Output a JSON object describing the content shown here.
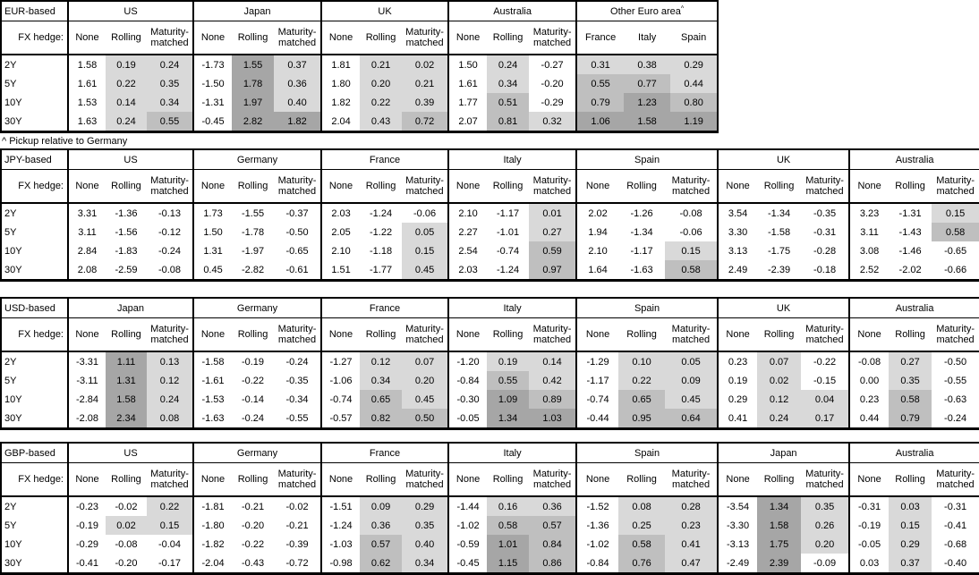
{
  "note": "^ Pickup relative to Germany",
  "header": {
    "fx_hedge_label": "FX hedge:",
    "subcolumns": [
      "None",
      "Rolling",
      "Maturity-matched"
    ]
  },
  "maturities": [
    "2Y",
    "5Y",
    "10Y",
    "30Y"
  ],
  "shading": {
    "colors": {
      "none": "#FFFFFF",
      "light": "#D9D9D9",
      "medium": "#BFBFBF",
      "dark": "#A6A6A6"
    },
    "thresholds": {
      "light_min_exclusive": 0,
      "medium_min": 0.5,
      "dark_min_exclusive": 1.0
    },
    "note": "None columns unshaded; Rolling / Maturity-matched / pickup columns shaded by value bucket"
  },
  "tables": [
    {
      "base": "EUR-based",
      "groups": [
        {
          "name": "US",
          "values": [
            [
              "1.58",
              "0.19",
              "0.24"
            ],
            [
              "1.61",
              "0.22",
              "0.35"
            ],
            [
              "1.53",
              "0.14",
              "0.34"
            ],
            [
              "1.63",
              "0.24",
              "0.55"
            ]
          ]
        },
        {
          "name": "Japan",
          "values": [
            [
              "-1.73",
              "1.55",
              "0.37"
            ],
            [
              "-1.50",
              "1.78",
              "0.36"
            ],
            [
              "-1.31",
              "1.97",
              "0.40"
            ],
            [
              "-0.45",
              "2.82",
              "1.82"
            ]
          ]
        },
        {
          "name": "UK",
          "values": [
            [
              "1.81",
              "0.21",
              "0.02"
            ],
            [
              "1.80",
              "0.20",
              "0.21"
            ],
            [
              "1.82",
              "0.22",
              "0.39"
            ],
            [
              "2.04",
              "0.43",
              "0.72"
            ]
          ]
        },
        {
          "name": "Australia",
          "values": [
            [
              "1.50",
              "0.24",
              "-0.27"
            ],
            [
              "1.61",
              "0.34",
              "-0.20"
            ],
            [
              "1.77",
              "0.51",
              "-0.29"
            ],
            [
              "2.07",
              "0.81",
              "0.32"
            ]
          ]
        },
        {
          "name": "Other Euro area",
          "superscript": "^",
          "shade_all": true,
          "columns": [
            "France",
            "Italy",
            "Spain"
          ],
          "values": [
            [
              "0.31",
              "0.38",
              "0.29"
            ],
            [
              "0.55",
              "0.77",
              "0.44"
            ],
            [
              "0.79",
              "1.23",
              "0.80"
            ],
            [
              "1.06",
              "1.58",
              "1.19"
            ]
          ]
        }
      ]
    },
    {
      "base": "JPY-based",
      "groups": [
        {
          "name": "US",
          "values": [
            [
              "3.31",
              "-1.36",
              "-0.13"
            ],
            [
              "3.11",
              "-1.56",
              "-0.12"
            ],
            [
              "2.84",
              "-1.83",
              "-0.24"
            ],
            [
              "2.08",
              "-2.59",
              "-0.08"
            ]
          ]
        },
        {
          "name": "Germany",
          "values": [
            [
              "1.73",
              "-1.55",
              "-0.37"
            ],
            [
              "1.50",
              "-1.78",
              "-0.50"
            ],
            [
              "1.31",
              "-1.97",
              "-0.65"
            ],
            [
              "0.45",
              "-2.82",
              "-0.61"
            ]
          ]
        },
        {
          "name": "France",
          "values": [
            [
              "2.03",
              "-1.24",
              "-0.06"
            ],
            [
              "2.05",
              "-1.22",
              "0.05"
            ],
            [
              "2.10",
              "-1.18",
              "0.15"
            ],
            [
              "1.51",
              "-1.77",
              "0.45"
            ]
          ]
        },
        {
          "name": "Italy",
          "values": [
            [
              "2.10",
              "-1.17",
              "0.01"
            ],
            [
              "2.27",
              "-1.01",
              "0.27"
            ],
            [
              "2.54",
              "-0.74",
              "0.59"
            ],
            [
              "2.03",
              "-1.24",
              "0.97"
            ]
          ]
        },
        {
          "name": "Spain",
          "values": [
            [
              "2.02",
              "-1.26",
              "-0.08"
            ],
            [
              "1.94",
              "-1.34",
              "-0.06"
            ],
            [
              "2.10",
              "-1.17",
              "0.15"
            ],
            [
              "1.64",
              "-1.63",
              "0.58"
            ]
          ]
        },
        {
          "name": "UK",
          "values": [
            [
              "3.54",
              "-1.34",
              "-0.35"
            ],
            [
              "3.30",
              "-1.58",
              "-0.31"
            ],
            [
              "3.13",
              "-1.75",
              "-0.28"
            ],
            [
              "2.49",
              "-2.39",
              "-0.18"
            ]
          ]
        },
        {
          "name": "Australia",
          "values": [
            [
              "3.23",
              "-1.31",
              "0.15"
            ],
            [
              "3.11",
              "-1.43",
              "0.58"
            ],
            [
              "3.08",
              "-1.46",
              "-0.65"
            ],
            [
              "2.52",
              "-2.02",
              "-0.66"
            ]
          ]
        }
      ]
    },
    {
      "base": "USD-based",
      "groups": [
        {
          "name": "Japan",
          "values": [
            [
              "-3.31",
              "1.11",
              "0.13"
            ],
            [
              "-3.11",
              "1.31",
              "0.12"
            ],
            [
              "-2.84",
              "1.58",
              "0.24"
            ],
            [
              "-2.08",
              "2.34",
              "0.08"
            ]
          ]
        },
        {
          "name": "Germany",
          "values": [
            [
              "-1.58",
              "-0.19",
              "-0.24"
            ],
            [
              "-1.61",
              "-0.22",
              "-0.35"
            ],
            [
              "-1.53",
              "-0.14",
              "-0.34"
            ],
            [
              "-1.63",
              "-0.24",
              "-0.55"
            ]
          ]
        },
        {
          "name": "France",
          "values": [
            [
              "-1.27",
              "0.12",
              "0.07"
            ],
            [
              "-1.06",
              "0.34",
              "0.20"
            ],
            [
              "-0.74",
              "0.65",
              "0.45"
            ],
            [
              "-0.57",
              "0.82",
              "0.50"
            ]
          ]
        },
        {
          "name": "Italy",
          "values": [
            [
              "-1.20",
              "0.19",
              "0.14"
            ],
            [
              "-0.84",
              "0.55",
              "0.42"
            ],
            [
              "-0.30",
              "1.09",
              "0.89"
            ],
            [
              "-0.05",
              "1.34",
              "1.03"
            ]
          ]
        },
        {
          "name": "Spain",
          "values": [
            [
              "-1.29",
              "0.10",
              "0.05"
            ],
            [
              "-1.17",
              "0.22",
              "0.09"
            ],
            [
              "-0.74",
              "0.65",
              "0.45"
            ],
            [
              "-0.44",
              "0.95",
              "0.64"
            ]
          ]
        },
        {
          "name": "UK",
          "values": [
            [
              "0.23",
              "0.07",
              "-0.22"
            ],
            [
              "0.19",
              "0.02",
              "-0.15"
            ],
            [
              "0.29",
              "0.12",
              "0.04"
            ],
            [
              "0.41",
              "0.24",
              "0.17"
            ]
          ]
        },
        {
          "name": "Australia",
          "values": [
            [
              "-0.08",
              "0.27",
              "-0.50"
            ],
            [
              "0.00",
              "0.35",
              "-0.55"
            ],
            [
              "0.23",
              "0.58",
              "-0.63"
            ],
            [
              "0.44",
              "0.79",
              "-0.24"
            ]
          ]
        }
      ]
    },
    {
      "base": "GBP-based",
      "groups": [
        {
          "name": "US",
          "values": [
            [
              "-0.23",
              "-0.02",
              "0.22"
            ],
            [
              "-0.19",
              "0.02",
              "0.15"
            ],
            [
              "-0.29",
              "-0.08",
              "-0.04"
            ],
            [
              "-0.41",
              "-0.20",
              "-0.17"
            ]
          ]
        },
        {
          "name": "Germany",
          "values": [
            [
              "-1.81",
              "-0.21",
              "-0.02"
            ],
            [
              "-1.80",
              "-0.20",
              "-0.21"
            ],
            [
              "-1.82",
              "-0.22",
              "-0.39"
            ],
            [
              "-2.04",
              "-0.43",
              "-0.72"
            ]
          ]
        },
        {
          "name": "France",
          "values": [
            [
              "-1.51",
              "0.09",
              "0.29"
            ],
            [
              "-1.24",
              "0.36",
              "0.35"
            ],
            [
              "-1.03",
              "0.57",
              "0.40"
            ],
            [
              "-0.98",
              "0.62",
              "0.34"
            ]
          ]
        },
        {
          "name": "Italy",
          "values": [
            [
              "-1.44",
              "0.16",
              "0.36"
            ],
            [
              "-1.02",
              "0.58",
              "0.57"
            ],
            [
              "-0.59",
              "1.01",
              "0.84"
            ],
            [
              "-0.45",
              "1.15",
              "0.86"
            ]
          ]
        },
        {
          "name": "Spain",
          "values": [
            [
              "-1.52",
              "0.08",
              "0.28"
            ],
            [
              "-1.36",
              "0.25",
              "0.23"
            ],
            [
              "-1.02",
              "0.58",
              "0.41"
            ],
            [
              "-0.84",
              "0.76",
              "0.47"
            ]
          ]
        },
        {
          "name": "Japan",
          "values": [
            [
              "-3.54",
              "1.34",
              "0.35"
            ],
            [
              "-3.30",
              "1.58",
              "0.26"
            ],
            [
              "-3.13",
              "1.75",
              "0.20"
            ],
            [
              "-2.49",
              "2.39",
              "-0.09"
            ]
          ]
        },
        {
          "name": "Australia",
          "values": [
            [
              "-0.31",
              "0.03",
              "-0.31"
            ],
            [
              "-0.19",
              "0.15",
              "-0.41"
            ],
            [
              "-0.05",
              "0.29",
              "-0.68"
            ],
            [
              "0.03",
              "0.37",
              "-0.40"
            ]
          ]
        }
      ]
    }
  ]
}
